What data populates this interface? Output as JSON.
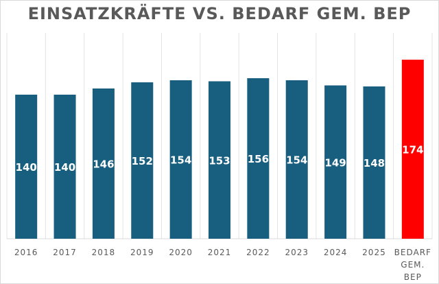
{
  "chart_data": {
    "type": "bar",
    "title": "EINSATZKRÄFTE VS. BEDARF GEM. BEP",
    "categories": [
      "2016",
      "2017",
      "2018",
      "2019",
      "2020",
      "2021",
      "2022",
      "2023",
      "2024",
      "2025",
      "BEDARF GEM. BEP"
    ],
    "values": [
      140,
      140,
      146,
      152,
      154,
      153,
      156,
      154,
      149,
      148,
      174
    ],
    "colors": [
      "#175e7f",
      "#175e7f",
      "#175e7f",
      "#175e7f",
      "#175e7f",
      "#175e7f",
      "#175e7f",
      "#175e7f",
      "#175e7f",
      "#175e7f",
      "#ff0000"
    ],
    "data_label_color": "#ffffff",
    "xlabel": "",
    "ylabel": "",
    "ylim": [
      0,
      200
    ],
    "grid": "vertical category separators",
    "legend": "none"
  }
}
